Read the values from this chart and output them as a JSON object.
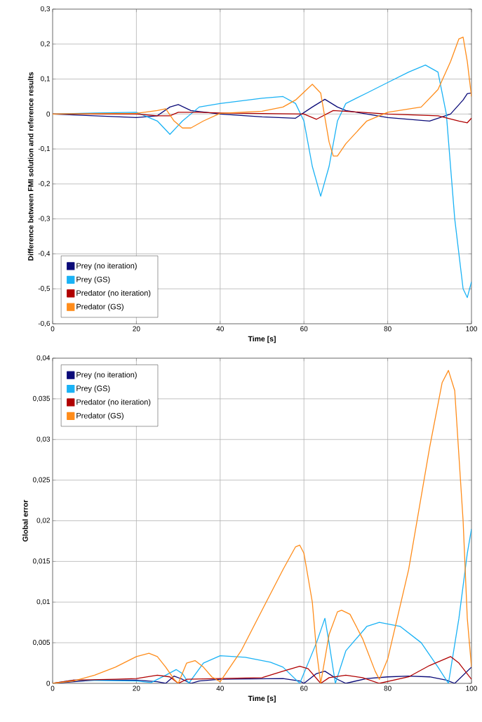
{
  "chart_data": [
    {
      "type": "line",
      "xlabel": "Time [s]",
      "ylabel": "Difference between FMI solution and reference results",
      "xlim": [
        0,
        100
      ],
      "ylim": [
        -0.6,
        0.3
      ],
      "xticks": [
        0,
        20,
        40,
        60,
        80,
        100
      ],
      "yticks": [
        {
          "value": -0.6,
          "label": "-0,6"
        },
        {
          "value": -0.5,
          "label": "-0,5"
        },
        {
          "value": -0.4,
          "label": "-0,4"
        },
        {
          "value": -0.3,
          "label": "-0,3"
        },
        {
          "value": -0.2,
          "label": "-0,2"
        },
        {
          "value": -0.1,
          "label": "-0,1"
        },
        {
          "value": 0,
          "label": "0"
        },
        {
          "value": 0.1,
          "label": "0,1"
        },
        {
          "value": 0.2,
          "label": "0,2"
        },
        {
          "value": 0.3,
          "label": "0,3"
        }
      ],
      "grid": true,
      "legend": "bottom left",
      "marker": "none",
      "line_style": "solid",
      "series": [
        {
          "name": "Prey (no iteration)",
          "color": "#0a0a78",
          "x": [
            0,
            20,
            25,
            28,
            30,
            33,
            40,
            50,
            58,
            62,
            65,
            68,
            70,
            80,
            90,
            95,
            98,
            99,
            100
          ],
          "values": [
            0,
            -0.01,
            -0.005,
            0.02,
            0.027,
            0.01,
            0.0,
            -0.008,
            -0.012,
            0.02,
            0.042,
            0.02,
            0.01,
            -0.01,
            -0.02,
            0.0,
            0.04,
            0.058,
            0.06
          ]
        },
        {
          "name": "Prey (GS)",
          "color": "#1ab2f5",
          "x": [
            0,
            10,
            20,
            25,
            28,
            31,
            35,
            40,
            50,
            55,
            58,
            60,
            62,
            64,
            66,
            68,
            70,
            75,
            80,
            85,
            89,
            92,
            94,
            96,
            98,
            99,
            100
          ],
          "values": [
            0,
            0.003,
            0.005,
            -0.02,
            -0.058,
            -0.02,
            0.02,
            0.03,
            0.045,
            0.05,
            0.03,
            -0.02,
            -0.15,
            -0.235,
            -0.15,
            -0.02,
            0.03,
            0.06,
            0.09,
            0.12,
            0.14,
            0.12,
            0.0,
            -0.3,
            -0.5,
            -0.525,
            -0.48
          ]
        },
        {
          "name": "Predator (no iteration)",
          "color": "#b00000",
          "x": [
            0,
            20,
            25,
            28,
            30,
            35,
            40,
            60,
            63,
            67,
            80,
            92,
            97,
            99,
            100
          ],
          "values": [
            0,
            0,
            -0.005,
            -0.005,
            0.005,
            0.005,
            0.003,
            0,
            -0.015,
            0.01,
            0.0,
            -0.005,
            -0.02,
            -0.025,
            -0.012
          ]
        },
        {
          "name": "Predator (GS)",
          "color": "#ff8c1a",
          "x": [
            0,
            20,
            25,
            27,
            29,
            31,
            33,
            36,
            40,
            50,
            55,
            58,
            62,
            64,
            66,
            67,
            68,
            70,
            75,
            80,
            88,
            92,
            95,
            97,
            98,
            99,
            100
          ],
          "values": [
            0,
            0.002,
            0.01,
            0.015,
            -0.02,
            -0.04,
            -0.04,
            -0.02,
            0.002,
            0.008,
            0.02,
            0.04,
            0.085,
            0.06,
            -0.08,
            -0.12,
            -0.12,
            -0.085,
            -0.02,
            0.005,
            0.02,
            0.07,
            0.15,
            0.215,
            0.22,
            0.15,
            0.05
          ]
        }
      ]
    },
    {
      "type": "line",
      "xlabel": "Time [s]",
      "ylabel": "Global error",
      "xlim": [
        0,
        100
      ],
      "ylim": [
        0,
        0.04
      ],
      "xticks": [
        0,
        20,
        40,
        60,
        80,
        100
      ],
      "yticks": [
        {
          "value": 0,
          "label": "0"
        },
        {
          "value": 0.005,
          "label": "0,005"
        },
        {
          "value": 0.01,
          "label": "0,01"
        },
        {
          "value": 0.015,
          "label": "0,015"
        },
        {
          "value": 0.02,
          "label": "0,02"
        },
        {
          "value": 0.025,
          "label": "0,025"
        },
        {
          "value": 0.03,
          "label": "0,03"
        },
        {
          "value": 0.035,
          "label": "0,035"
        },
        {
          "value": 0.04,
          "label": "0,04"
        }
      ],
      "grid": true,
      "legend": "top left",
      "marker": "none",
      "line_style": "solid",
      "series": [
        {
          "name": "Prey (no iteration)",
          "color": "#0a0a78",
          "x": [
            0,
            10,
            20,
            25,
            27,
            29,
            31,
            33,
            35,
            40,
            55,
            59,
            60,
            63,
            65,
            68,
            70,
            75,
            80,
            85,
            90,
            94,
            96,
            100
          ],
          "values": [
            0,
            0.0004,
            0.0004,
            0.0002,
            0,
            0.0009,
            0.0005,
            0,
            0.0003,
            0.0005,
            0.0006,
            0.0003,
            0,
            0.0012,
            0.0015,
            0.0005,
            0,
            0.0006,
            0.0008,
            0.0009,
            0.0008,
            0.0004,
            0,
            0.002
          ]
        },
        {
          "name": "Prey (GS)",
          "color": "#1ab2f5",
          "x": [
            0,
            5,
            20,
            23.5,
            27,
            29.5,
            31,
            32.5,
            36,
            40,
            46,
            52,
            55,
            59,
            61,
            63,
            65,
            66,
            67.5,
            70,
            75,
            78,
            83,
            88,
            92,
            94.5,
            97,
            99,
            100
          ],
          "values": [
            0,
            0.0004,
            0.0003,
            0.0001,
            0.001,
            0.0017,
            0.0012,
            0,
            0.0025,
            0.0034,
            0.0032,
            0.0026,
            0.002,
            0,
            0.0025,
            0.005,
            0.008,
            0.005,
            0,
            0.004,
            0.007,
            0.0075,
            0.007,
            0.005,
            0.002,
            0,
            0.008,
            0.016,
            0.019
          ]
        },
        {
          "name": "Predator (no iteration)",
          "color": "#b00000",
          "x": [
            0,
            5,
            15,
            20,
            25,
            28,
            30,
            32,
            40,
            50,
            55,
            59,
            61,
            64,
            66,
            70,
            74,
            78,
            85,
            90,
            95,
            97,
            100
          ],
          "values": [
            0,
            0.0004,
            0.0005,
            0.0006,
            0.001,
            0.0008,
            0,
            0.0005,
            0.0006,
            0.0007,
            0.0015,
            0.0021,
            0.0018,
            0,
            0.0007,
            0.001,
            0.0007,
            0,
            0.0008,
            0.0022,
            0.0033,
            0.0025,
            0.0005
          ]
        },
        {
          "name": "Predator (GS)",
          "color": "#ff8c1a",
          "x": [
            0,
            5,
            10,
            15,
            20,
            23,
            25,
            27,
            29,
            30,
            32,
            34,
            36,
            38,
            40,
            45,
            50,
            55,
            58,
            59,
            60,
            62,
            63,
            64,
            66,
            68,
            69,
            71,
            74,
            77,
            78,
            80,
            85,
            90,
            93,
            94.5,
            96,
            98,
            99,
            100
          ],
          "values": [
            0,
            0.0003,
            0.001,
            0.002,
            0.0033,
            0.0037,
            0.0033,
            0.002,
            0.0005,
            0,
            0.0025,
            0.0028,
            0.002,
            0.0008,
            0.0002,
            0.004,
            0.009,
            0.014,
            0.0168,
            0.017,
            0.016,
            0.01,
            0.004,
            0,
            0.006,
            0.0088,
            0.009,
            0.0085,
            0.0055,
            0.0015,
            0.0005,
            0.003,
            0.014,
            0.029,
            0.037,
            0.0385,
            0.036,
            0.02,
            0.008,
            0.002
          ]
        }
      ]
    }
  ]
}
